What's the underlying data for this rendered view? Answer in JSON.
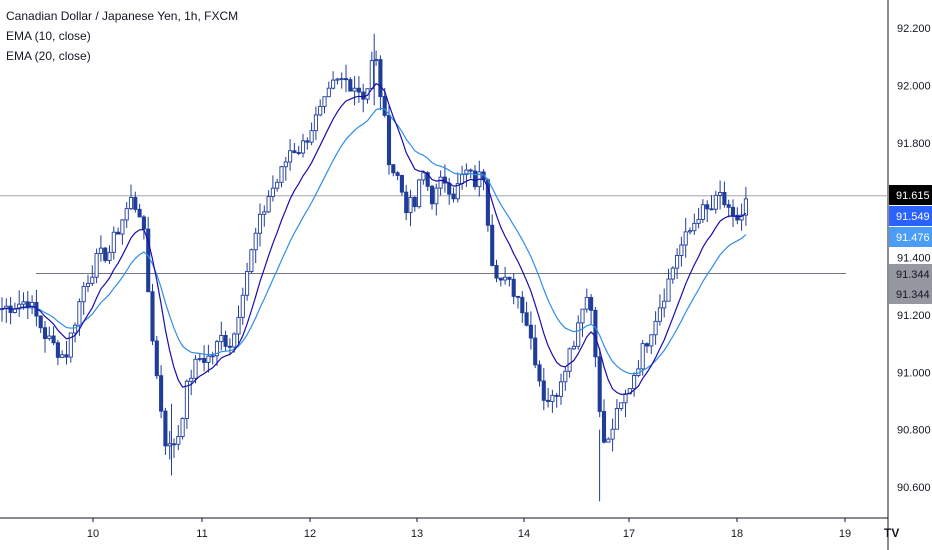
{
  "legend": {
    "title": "Canadian Dollar / Japanese Yen, 1h, FXCM",
    "ema10": "EMA (10, close)",
    "ema20": "EMA (20, close)"
  },
  "colors": {
    "candle": "#1f3d99",
    "ema10": "#1a0dab",
    "ema20": "#2f8fe6",
    "hline": "#9598a1",
    "grid_border": "#131722",
    "last_price_bg": "#000000",
    "ema10_bg": "#2962ff",
    "ema20_bg": "#4a9cf5",
    "level_bg": "#9598a1"
  },
  "logo": "TV",
  "chart_data": {
    "type": "candlestick",
    "title": "Canadian Dollar / Japanese Yen, 1h, FXCM",
    "y_axis": {
      "ticks": [
        "92.200",
        "92.000",
        "91.800",
        "91.400",
        "91.200",
        "91.000",
        "90.800",
        "90.600"
      ],
      "range": [
        90.53,
        92.26
      ]
    },
    "x_axis": {
      "ticks": [
        "10",
        "11",
        "12",
        "13",
        "14",
        "17",
        "18",
        "19"
      ]
    },
    "price_tags": [
      {
        "label": "91.615",
        "value": 91.615,
        "role": "last"
      },
      {
        "label": "91.549",
        "value": 91.549,
        "role": "ema10"
      },
      {
        "label": "91.476",
        "value": 91.476,
        "role": "ema20"
      },
      {
        "label": "91.344",
        "value": 91.344,
        "role": "level"
      },
      {
        "label": "91.344",
        "value": 91.344,
        "role": "level"
      }
    ],
    "horizontal_lines": [
      91.615,
      91.344
    ],
    "close_path": [
      [
        9.5,
        91.22
      ],
      [
        9.65,
        91.25
      ],
      [
        9.75,
        91.12
      ],
      [
        9.85,
        91.05
      ],
      [
        9.95,
        91.3
      ],
      [
        10.05,
        91.4
      ],
      [
        10.15,
        91.42
      ],
      [
        10.25,
        91.52
      ],
      [
        10.35,
        91.6
      ],
      [
        10.45,
        91.55
      ],
      [
        10.52,
        91.22
      ],
      [
        10.58,
        91.0
      ],
      [
        10.68,
        90.72
      ],
      [
        10.78,
        90.78
      ],
      [
        10.88,
        90.98
      ],
      [
        10.98,
        91.05
      ],
      [
        11.08,
        91.05
      ],
      [
        11.18,
        91.12
      ],
      [
        11.28,
        91.1
      ],
      [
        11.38,
        91.3
      ],
      [
        11.5,
        91.48
      ],
      [
        11.62,
        91.62
      ],
      [
        11.72,
        91.68
      ],
      [
        11.82,
        91.78
      ],
      [
        11.92,
        91.78
      ],
      [
        12.02,
        91.86
      ],
      [
        12.12,
        91.92
      ],
      [
        12.22,
        92.0
      ],
      [
        12.32,
        92.02
      ],
      [
        12.42,
        92.0
      ],
      [
        12.52,
        91.96
      ],
      [
        12.6,
        92.12
      ],
      [
        12.68,
        91.92
      ],
      [
        12.75,
        91.72
      ],
      [
        12.82,
        91.68
      ],
      [
        12.9,
        91.58
      ],
      [
        12.98,
        91.58
      ],
      [
        13.05,
        91.7
      ],
      [
        13.15,
        91.6
      ],
      [
        13.25,
        91.68
      ],
      [
        13.35,
        91.62
      ],
      [
        13.45,
        91.7
      ],
      [
        13.55,
        91.66
      ],
      [
        13.62,
        91.7
      ],
      [
        13.7,
        91.4
      ],
      [
        13.78,
        91.32
      ],
      [
        13.88,
        91.3
      ],
      [
        13.98,
        91.24
      ],
      [
        14.08,
        91.1
      ],
      [
        14.18,
        90.92
      ],
      [
        14.28,
        90.9
      ],
      [
        14.38,
        91.02
      ],
      [
        14.48,
        91.12
      ],
      [
        14.58,
        91.28
      ],
      [
        14.66,
        91.2
      ],
      [
        14.72,
        90.85
      ],
      [
        14.78,
        90.72
      ],
      [
        14.85,
        90.82
      ],
      [
        14.95,
        90.9
      ],
      [
        15.05,
        91.0
      ],
      [
        15.15,
        91.1
      ],
      [
        15.25,
        91.2
      ],
      [
        15.35,
        91.3
      ],
      [
        15.45,
        91.42
      ],
      [
        15.55,
        91.48
      ],
      [
        15.65,
        91.56
      ],
      [
        15.75,
        91.56
      ],
      [
        15.85,
        91.62
      ],
      [
        15.95,
        91.52
      ],
      [
        16.05,
        91.55
      ],
      [
        16.1,
        91.615
      ]
    ],
    "high_points": [
      [
        12.6,
        92.18
      ],
      [
        14.72,
        90.55
      ],
      [
        10.72,
        90.64
      ]
    ]
  }
}
